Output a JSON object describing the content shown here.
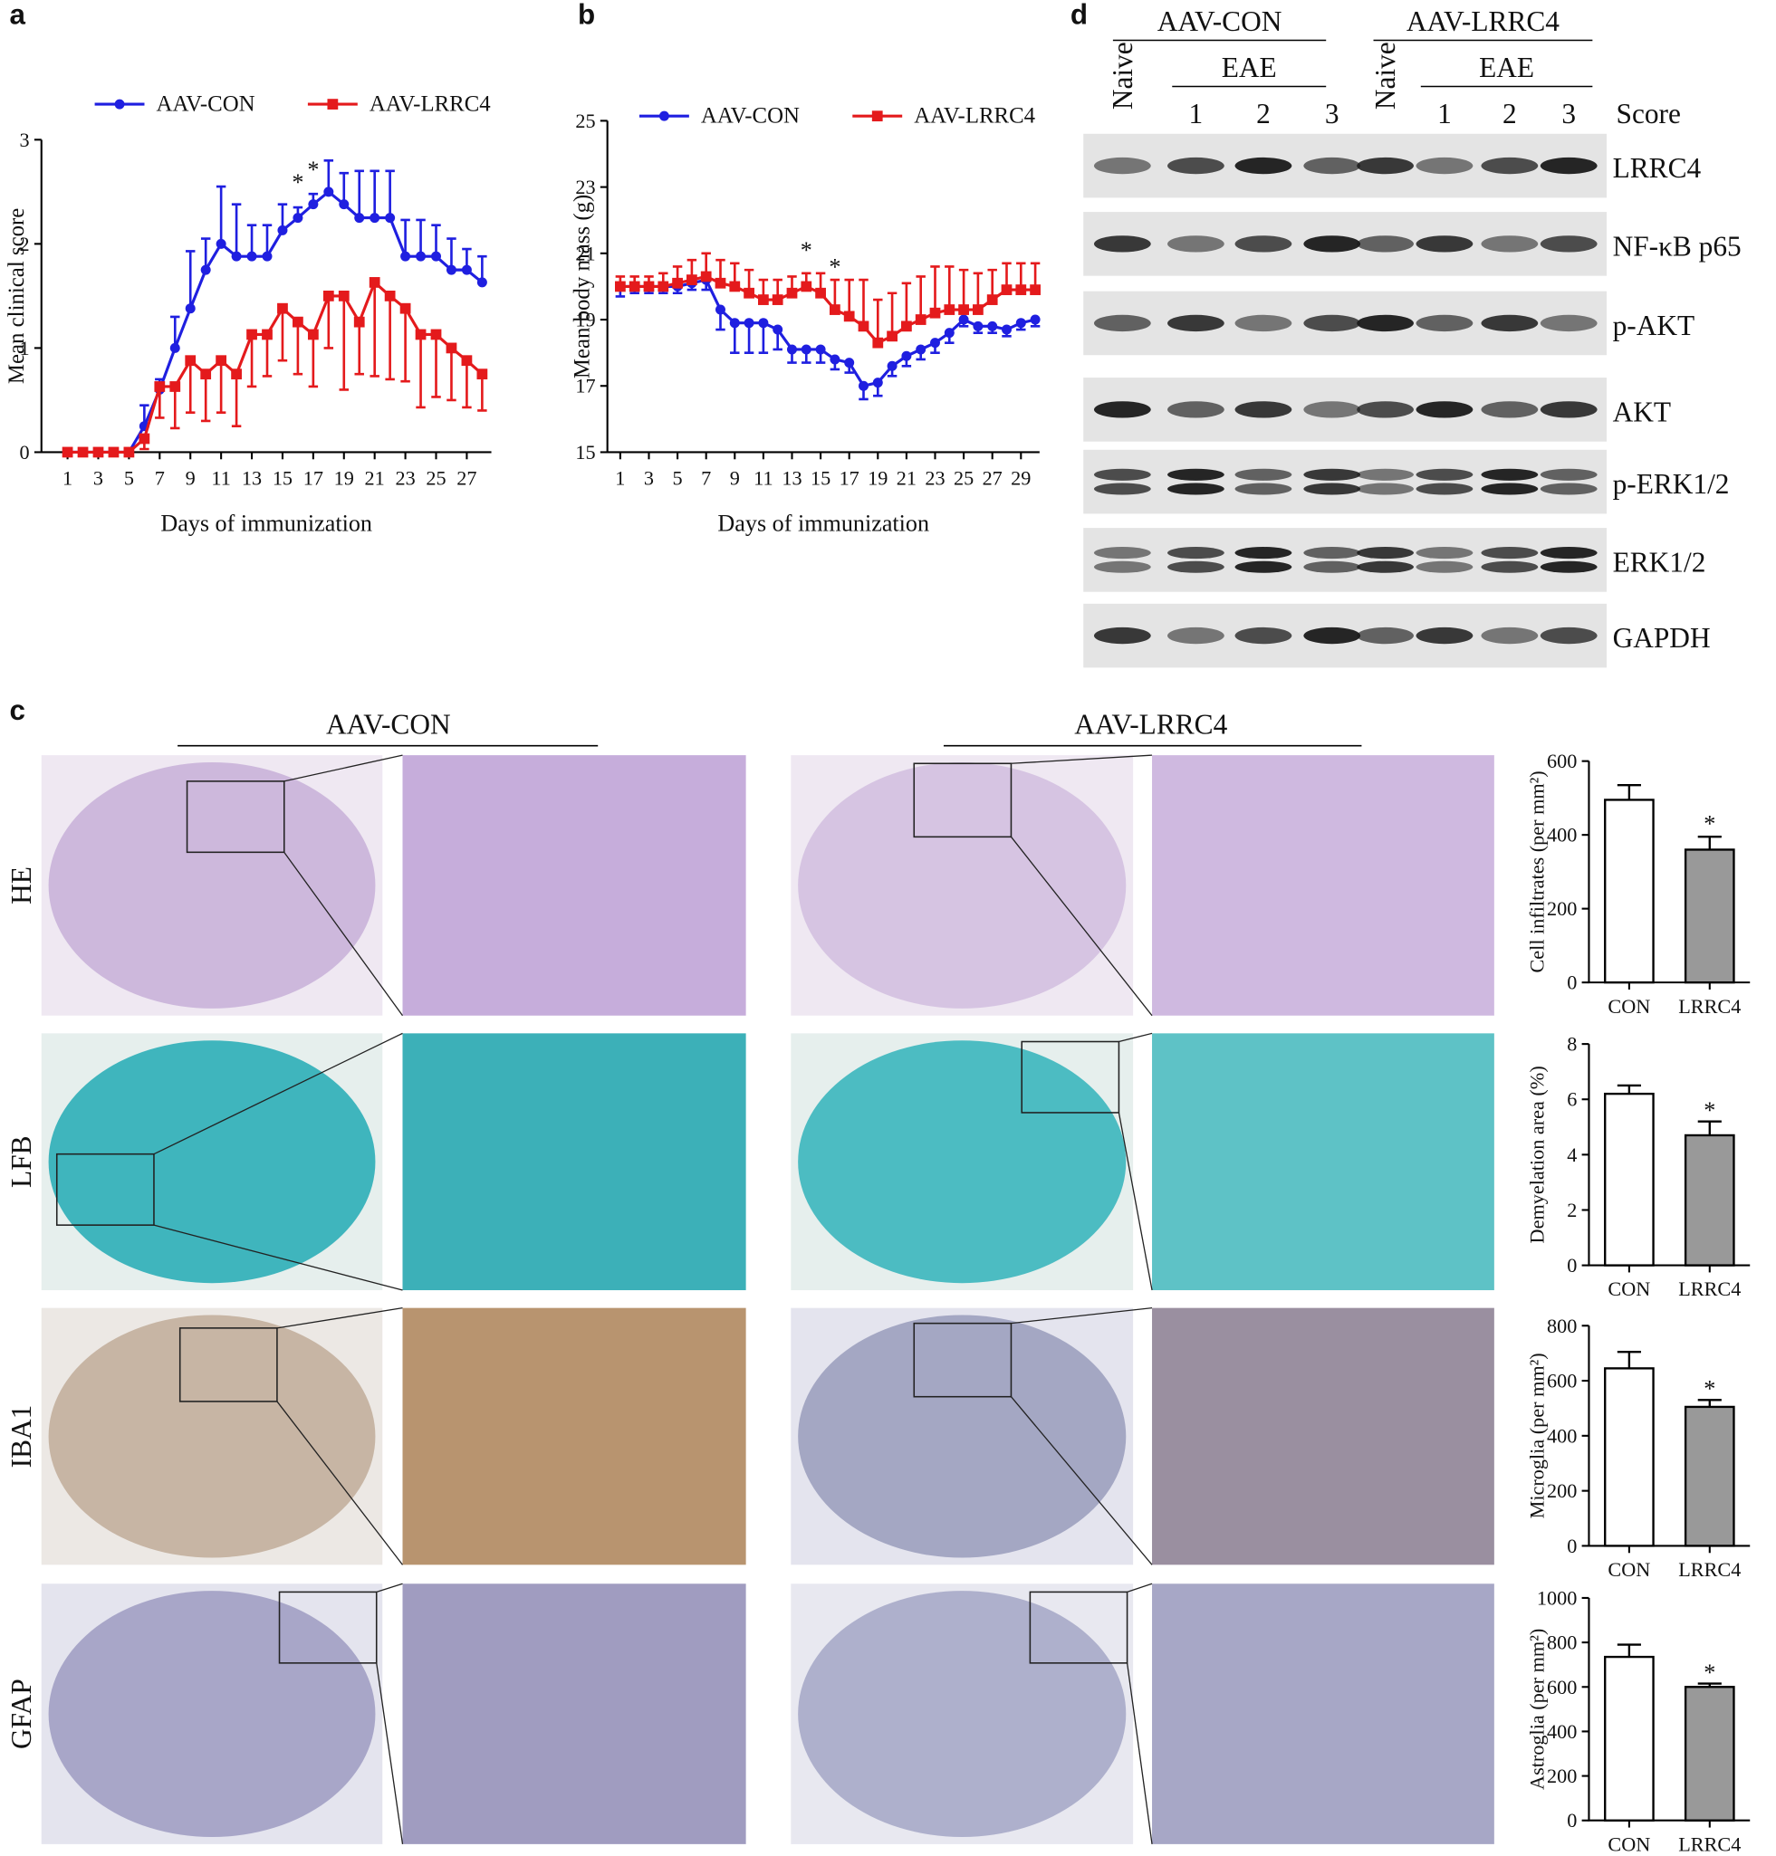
{
  "panel_labels": [
    "a",
    "b",
    "c",
    "d"
  ],
  "chart_data": [
    {
      "type": "line",
      "ylabel": "Mean clinical score",
      "xlabel": "Days of immunization",
      "x": [
        1,
        2,
        3,
        4,
        5,
        6,
        7,
        8,
        9,
        10,
        11,
        12,
        13,
        14,
        15,
        16,
        17,
        18,
        19,
        20,
        21,
        22,
        23,
        24,
        25,
        26,
        27,
        28
      ],
      "xlim": [
        -0.7,
        28.6
      ],
      "ylim": [
        0,
        3
      ],
      "yticks": [
        0,
        1,
        2,
        3
      ],
      "xticks": [
        1,
        3,
        5,
        7,
        9,
        11,
        13,
        15,
        17,
        19,
        21,
        23,
        25,
        27
      ],
      "series": [
        {
          "name": "AAV-CON",
          "color": "#1f1fe0",
          "marker": "circle",
          "error_direction": "up",
          "values": [
            0,
            0,
            0,
            0,
            0,
            0.25,
            0.6,
            1,
            1.38,
            1.75,
            2,
            1.88,
            1.88,
            1.88,
            2.13,
            2.25,
            2.38,
            2.5,
            2.38,
            2.25,
            2.25,
            2.25,
            1.88,
            1.88,
            1.88,
            1.75,
            1.75,
            1.63
          ],
          "errors": [
            0,
            0,
            0,
            0,
            0,
            0.2,
            0.1,
            0.3,
            0.55,
            0.3,
            0.55,
            0.5,
            0.3,
            0.3,
            0.25,
            0.1,
            0.1,
            0.3,
            0.3,
            0.45,
            0.45,
            0.45,
            0.35,
            0.35,
            0.3,
            0.3,
            0.2,
            0.25
          ]
        },
        {
          "name": "AAV-LRRC4",
          "color": "#e41a1c",
          "marker": "square",
          "error_direction": "down",
          "values": [
            0,
            0,
            0,
            0,
            0,
            0.13,
            0.63,
            0.63,
            0.88,
            0.75,
            0.88,
            0.75,
            1.13,
            1.13,
            1.38,
            1.25,
            1.13,
            1.5,
            1.5,
            1.25,
            1.63,
            1.5,
            1.38,
            1.13,
            1.13,
            1,
            0.88,
            0.75
          ],
          "errors": [
            0,
            0,
            0,
            0,
            0,
            0.1,
            0.3,
            0.4,
            0.5,
            0.45,
            0.5,
            0.5,
            0.5,
            0.4,
            0.5,
            0.5,
            0.5,
            0.5,
            0.9,
            0.5,
            0.9,
            0.8,
            0.7,
            0.7,
            0.6,
            0.5,
            0.45,
            0.35
          ]
        }
      ],
      "annotations": [
        {
          "text": "*",
          "x": 16,
          "y": 2.5
        },
        {
          "text": "*",
          "x": 17,
          "y": 2.62
        }
      ]
    },
    {
      "type": "line",
      "ylabel": "Mean body mass (g)",
      "xlabel": "Days of immunization",
      "x": [
        1,
        2,
        3,
        4,
        5,
        6,
        7,
        8,
        9,
        10,
        11,
        12,
        13,
        14,
        15,
        16,
        17,
        18,
        19,
        20,
        21,
        22,
        23,
        24,
        25,
        26,
        27,
        28,
        29,
        30
      ],
      "xlim": [
        0.1,
        30.3
      ],
      "ylim": [
        15,
        25
      ],
      "yticks": [
        15,
        17,
        19,
        21,
        23,
        25
      ],
      "xticks": [
        1,
        3,
        5,
        7,
        9,
        11,
        13,
        15,
        17,
        19,
        21,
        23,
        25,
        27,
        29
      ],
      "series": [
        {
          "name": "AAV-CON",
          "color": "#1f1fe0",
          "marker": "circle",
          "error_direction": "down",
          "values": [
            20,
            20,
            20,
            20,
            20,
            20.1,
            20.2,
            19.3,
            18.9,
            18.9,
            18.9,
            18.7,
            18.1,
            18.1,
            18.1,
            17.8,
            17.7,
            17,
            17.1,
            17.6,
            17.9,
            18.1,
            18.3,
            18.6,
            19,
            18.8,
            18.8,
            18.7,
            18.9,
            19
          ],
          "errors": [
            0.3,
            0.2,
            0.2,
            0.2,
            0.2,
            0.2,
            0.3,
            0.6,
            0.9,
            0.9,
            0.9,
            0.6,
            0.4,
            0.4,
            0.4,
            0.3,
            0.3,
            0.4,
            0.4,
            0.3,
            0.3,
            0.3,
            0.3,
            0.3,
            0.2,
            0.2,
            0.2,
            0.2,
            0.2,
            0.2
          ]
        },
        {
          "name": "AAV-LRRC4",
          "color": "#e41a1c",
          "marker": "square",
          "error_direction": "up",
          "values": [
            20,
            20,
            20,
            20,
            20.1,
            20.2,
            20.3,
            20.1,
            20,
            19.8,
            19.6,
            19.6,
            19.8,
            20,
            19.8,
            19.3,
            19.1,
            18.8,
            18.3,
            18.5,
            18.8,
            19,
            19.2,
            19.3,
            19.3,
            19.3,
            19.6,
            19.9,
            19.9,
            19.9
          ],
          "errors": [
            0.3,
            0.3,
            0.3,
            0.4,
            0.5,
            0.6,
            0.7,
            0.7,
            0.7,
            0.7,
            0.6,
            0.6,
            0.5,
            0.4,
            0.6,
            0.9,
            1.1,
            1.4,
            1.3,
            1.3,
            1.3,
            1.3,
            1.4,
            1.3,
            1.2,
            1.1,
            0.9,
            0.8,
            0.8,
            0.8
          ]
        }
      ],
      "annotations": [
        {
          "text": "*",
          "x": 14,
          "y": 20.8
        },
        {
          "text": "*",
          "x": 16,
          "y": 20.3
        }
      ]
    },
    {
      "type": "bar",
      "ylabel": "Cell infiltrates (per mm²)",
      "categories": [
        "CON",
        "LRRC4"
      ],
      "values": [
        495,
        360
      ],
      "errors": [
        40,
        35
      ],
      "colors": [
        "#ffffff",
        "#999999"
      ],
      "ylim": [
        0,
        600
      ],
      "yticks": [
        0,
        200,
        400,
        600
      ],
      "annotations": [
        {
          "text": "*",
          "category": "LRRC4",
          "y": 430
        }
      ]
    },
    {
      "type": "bar",
      "ylabel": "Demyelation area (%)",
      "categories": [
        "CON",
        "LRRC4"
      ],
      "values": [
        6.2,
        4.7
      ],
      "errors": [
        0.3,
        0.5
      ],
      "colors": [
        "#ffffff",
        "#999999"
      ],
      "ylim": [
        0,
        8
      ],
      "yticks": [
        0,
        2,
        4,
        6,
        8
      ],
      "annotations": [
        {
          "text": "*",
          "category": "LRRC4",
          "y": 5.6
        }
      ]
    },
    {
      "type": "bar",
      "ylabel": "Microglia (per mm²)",
      "categories": [
        "CON",
        "LRRC4"
      ],
      "values": [
        645,
        505
      ],
      "errors": [
        60,
        25
      ],
      "colors": [
        "#ffffff",
        "#999999"
      ],
      "ylim": [
        0,
        800
      ],
      "yticks": [
        0,
        200,
        400,
        600,
        800
      ],
      "annotations": [
        {
          "text": "*",
          "category": "LRRC4",
          "y": 570
        }
      ]
    },
    {
      "type": "bar",
      "ylabel": "Astroglia (per mm²)",
      "categories": [
        "CON",
        "LRRC4"
      ],
      "values": [
        735,
        600
      ],
      "errors": [
        55,
        15
      ],
      "colors": [
        "#ffffff",
        "#999999"
      ],
      "ylim": [
        0,
        1000
      ],
      "yticks": [
        0,
        200,
        400,
        600,
        800,
        1000
      ],
      "annotations": [
        {
          "text": "*",
          "category": "LRRC4",
          "y": 665
        }
      ]
    }
  ],
  "blot": {
    "groups": [
      {
        "name": "AAV-CON",
        "naive": "Naive",
        "eae": "EAE",
        "scores": [
          "1",
          "2",
          "3"
        ]
      },
      {
        "name": "AAV-LRRC4",
        "naive": "Naive",
        "eae": "EAE",
        "scores": [
          "1",
          "2",
          "3"
        ]
      }
    ],
    "score_label": "Score",
    "proteins": [
      "LRRC4",
      "NF-κB p65",
      "p-AKT",
      "AKT",
      "p-ERK1/2",
      "ERK1/2",
      "GAPDH"
    ]
  },
  "histology": {
    "groups": [
      "AAV-CON",
      "AAV-LRRC4"
    ],
    "stains": [
      "HE",
      "LFB",
      "IBA1",
      "GFAP"
    ]
  }
}
